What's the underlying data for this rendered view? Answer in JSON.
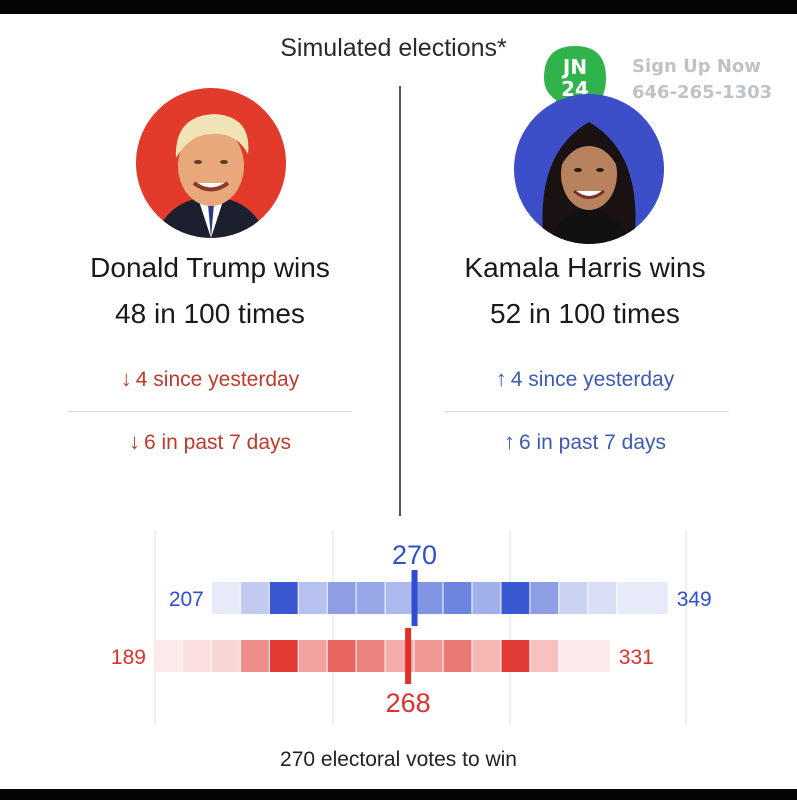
{
  "title": "Simulated elections*",
  "watermark": {
    "badge_line1": "JN",
    "badge_line2": "24",
    "line1": "Sign Up Now",
    "line2": "646-265-1303"
  },
  "candidates": {
    "left": {
      "name": "Donald Trump wins",
      "odds": "48 in 100 times",
      "change_day_arrow": "↓",
      "change_day": "4 since yesterday",
      "change_week_arrow": "↓",
      "change_week": "6 in past 7 days",
      "color": "#c0392b",
      "ring_color": "#e23b2b"
    },
    "right": {
      "name": "Kamala Harris wins",
      "odds": "52 in 100 times",
      "change_day_arrow": "↑",
      "change_day": "4 since yesterday",
      "change_week_arrow": "↑",
      "change_week": "6 in past 7 days",
      "color": "#3b5bb5",
      "ring_color": "#3d4fc8"
    }
  },
  "chart_data": {
    "type": "heatmap",
    "x_range": [
      180,
      355
    ],
    "threshold": 270,
    "series": [
      {
        "min_label": "207",
        "max_label": "349",
        "median_label": "270",
        "median": 270,
        "color": "#2f4fd0",
        "range": [
          207,
          349
        ],
        "bins": [
          {
            "from": 207,
            "to": 216,
            "intensity": 0.12
          },
          {
            "from": 216,
            "to": 225,
            "intensity": 0.3
          },
          {
            "from": 225,
            "to": 234,
            "intensity": 0.95
          },
          {
            "from": 234,
            "to": 243,
            "intensity": 0.35
          },
          {
            "from": 243,
            "to": 252,
            "intensity": 0.55
          },
          {
            "from": 252,
            "to": 261,
            "intensity": 0.5
          },
          {
            "from": 261,
            "to": 270,
            "intensity": 0.4
          },
          {
            "from": 270,
            "to": 279,
            "intensity": 0.6
          },
          {
            "from": 279,
            "to": 288,
            "intensity": 0.7
          },
          {
            "from": 288,
            "to": 297,
            "intensity": 0.45
          },
          {
            "from": 297,
            "to": 306,
            "intensity": 0.95
          },
          {
            "from": 306,
            "to": 315,
            "intensity": 0.55
          },
          {
            "from": 315,
            "to": 324,
            "intensity": 0.25
          },
          {
            "from": 324,
            "to": 333,
            "intensity": 0.18
          },
          {
            "from": 333,
            "to": 349,
            "intensity": 0.12
          }
        ]
      },
      {
        "min_label": "189",
        "max_label": "331",
        "median_label": "268",
        "median": 268,
        "color": "#e0302a",
        "range": [
          189,
          331
        ],
        "bins": [
          {
            "from": 189,
            "to": 198,
            "intensity": 0.1
          },
          {
            "from": 198,
            "to": 207,
            "intensity": 0.15
          },
          {
            "from": 207,
            "to": 216,
            "intensity": 0.2
          },
          {
            "from": 216,
            "to": 225,
            "intensity": 0.55
          },
          {
            "from": 225,
            "to": 234,
            "intensity": 0.95
          },
          {
            "from": 234,
            "to": 243,
            "intensity": 0.45
          },
          {
            "from": 243,
            "to": 252,
            "intensity": 0.75
          },
          {
            "from": 252,
            "to": 261,
            "intensity": 0.6
          },
          {
            "from": 261,
            "to": 270,
            "intensity": 0.4
          },
          {
            "from": 270,
            "to": 279,
            "intensity": 0.5
          },
          {
            "from": 279,
            "to": 288,
            "intensity": 0.65
          },
          {
            "from": 288,
            "to": 297,
            "intensity": 0.35
          },
          {
            "from": 297,
            "to": 306,
            "intensity": 0.95
          },
          {
            "from": 306,
            "to": 315,
            "intensity": 0.3
          },
          {
            "from": 315,
            "to": 331,
            "intensity": 0.1
          }
        ]
      }
    ],
    "footnote": "270 electoral votes to win"
  }
}
